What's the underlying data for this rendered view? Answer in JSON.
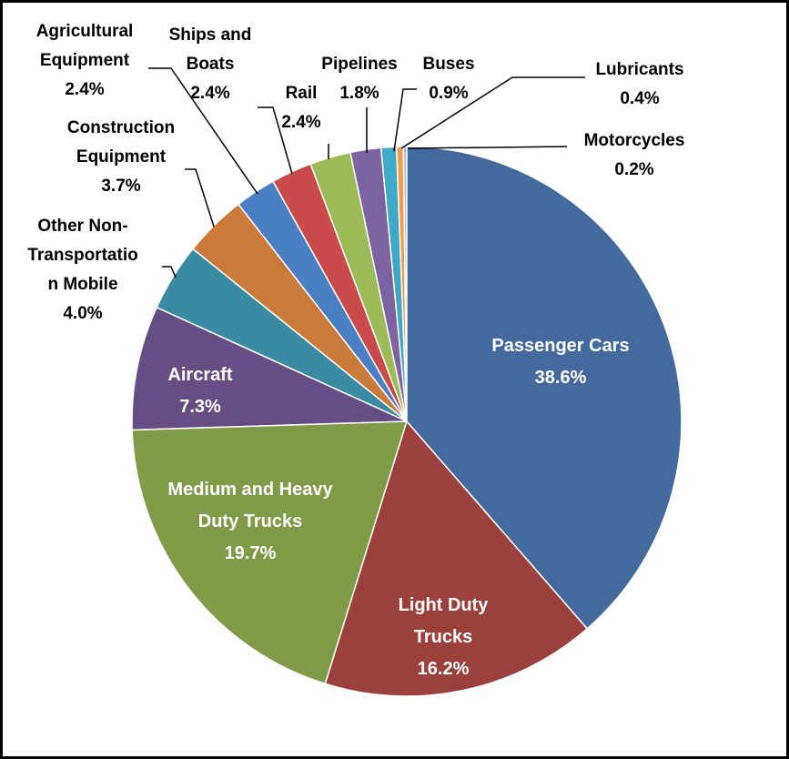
{
  "chart_data": {
    "type": "pie",
    "categories": [
      "Passenger Cars",
      "Light Duty Trucks",
      "Medium and Heavy Duty Trucks",
      "Aircraft",
      "Other Non-Transportation Mobile",
      "Construction Equipment",
      "Agricultural Equipment",
      "Ships and Boats",
      "Rail",
      "Pipelines",
      "Buses",
      "Lubricants",
      "Motorcycles"
    ],
    "values": [
      38.6,
      16.2,
      19.7,
      7.3,
      4.0,
      3.7,
      2.4,
      2.4,
      2.4,
      1.8,
      0.9,
      0.4,
      0.2
    ],
    "value_labels": [
      "38.6%",
      "16.2%",
      "19.7%",
      "7.3%",
      "4.0%",
      "3.7%",
      "2.4%",
      "2.4%",
      "2.4%",
      "1.8%",
      "0.9%",
      "0.4%",
      "0.2%"
    ],
    "colors": [
      "#44699d",
      "#9c403e",
      "#7f9b48",
      "#664e85",
      "#3a8ba1",
      "#cb7a39",
      "#4b7fc4",
      "#c94b4a",
      "#9bbb59",
      "#7e63a1",
      "#40a9c7",
      "#f59b45",
      "#a7badb"
    ]
  }
}
